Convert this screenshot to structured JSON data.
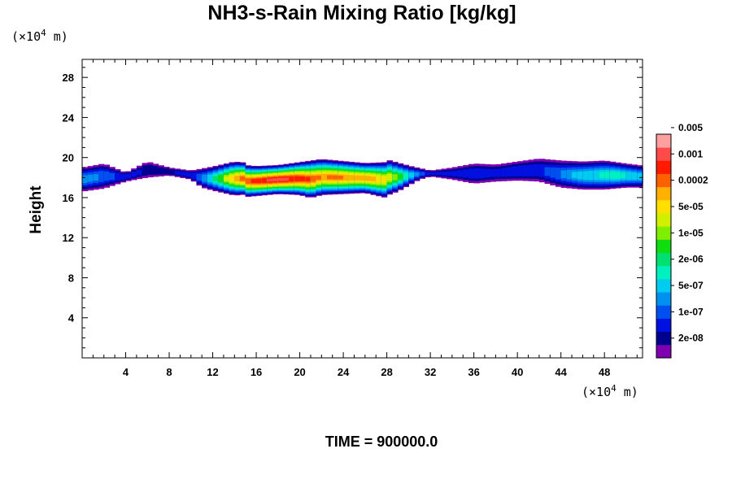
{
  "chart_data": {
    "type": "heatmap",
    "title": "NH3-s-Rain Mixing Ratio [kg/kg]",
    "ylabel": "Height",
    "x_unit": {
      "prefix": "(×10",
      "exp": "4",
      "suffix": " m)"
    },
    "y_unit": {
      "prefix": "(×10",
      "exp": "4",
      "suffix": " m)"
    },
    "xlim": [
      0,
      51.5
    ],
    "ylim": [
      0,
      29.8
    ],
    "x_ticks": [
      4,
      8,
      12,
      16,
      20,
      24,
      28,
      32,
      36,
      40,
      44,
      48
    ],
    "y_ticks": [
      4,
      8,
      12,
      16,
      20,
      24,
      28
    ],
    "time_label": "TIME = 900000.0",
    "colorbar": {
      "colors": [
        "#7F00B0",
        "#00008F",
        "#0010E0",
        "#0050F0",
        "#0090F0",
        "#00CCF0",
        "#00F0C0",
        "#00E070",
        "#10DD10",
        "#80EE00",
        "#D0F000",
        "#FFE000",
        "#FFB000",
        "#FF6000",
        "#FF1A00",
        "#FF4A4A",
        "#FFA0A0"
      ],
      "labels": [
        "2e-08",
        "1e-07",
        "5e-07",
        "2e-06",
        "1e-05",
        "5e-05",
        "0.0002",
        "0.001",
        "0.005"
      ]
    },
    "field": {
      "x_start": 0,
      "x_end": 51.5,
      "x_step": 0.5,
      "top_ctrl": [
        [
          0,
          19.0
        ],
        [
          2,
          19.4
        ],
        [
          4,
          18.5
        ],
        [
          6,
          19.6
        ],
        [
          8,
          19.0
        ],
        [
          10,
          18.7
        ],
        [
          12,
          19.1
        ],
        [
          14,
          19.6
        ],
        [
          16,
          19.4
        ],
        [
          18,
          19.5
        ],
        [
          20,
          19.8
        ],
        [
          22,
          20.1
        ],
        [
          24,
          19.9
        ],
        [
          26,
          19.7
        ],
        [
          28,
          19.8
        ],
        [
          30,
          19.2
        ],
        [
          32,
          18.7
        ],
        [
          34,
          19.0
        ],
        [
          36,
          19.4
        ],
        [
          38,
          19.3
        ],
        [
          40,
          19.6
        ],
        [
          42,
          19.9
        ],
        [
          44,
          19.7
        ],
        [
          46,
          19.6
        ],
        [
          48,
          19.7
        ],
        [
          50,
          19.4
        ],
        [
          51.5,
          19.2
        ]
      ],
      "bot_ctrl": [
        [
          0,
          16.6
        ],
        [
          2,
          16.9
        ],
        [
          4,
          17.6
        ],
        [
          6,
          18.0
        ],
        [
          8,
          18.2
        ],
        [
          10,
          17.8
        ],
        [
          11,
          17.0
        ],
        [
          12,
          16.7
        ],
        [
          14,
          16.2
        ],
        [
          16,
          16.4
        ],
        [
          18,
          16.6
        ],
        [
          20,
          16.5
        ],
        [
          21,
          16.2
        ],
        [
          22,
          16.5
        ],
        [
          24,
          16.6
        ],
        [
          26,
          16.7
        ],
        [
          28,
          16.2
        ],
        [
          29,
          16.6
        ],
        [
          30,
          17.2
        ],
        [
          31,
          17.8
        ],
        [
          32,
          18.1
        ],
        [
          34,
          17.8
        ],
        [
          36,
          17.4
        ],
        [
          38,
          17.6
        ],
        [
          40,
          17.7
        ],
        [
          42,
          17.6
        ],
        [
          44,
          17.0
        ],
        [
          46,
          16.8
        ],
        [
          48,
          16.8
        ],
        [
          50,
          17.0
        ],
        [
          51.5,
          17.0
        ]
      ],
      "int_ctrl": [
        [
          0,
          4.5
        ],
        [
          2,
          3.8
        ],
        [
          4,
          2.4
        ],
        [
          6,
          1.8
        ],
        [
          8,
          1.8
        ],
        [
          10,
          2.6
        ],
        [
          11,
          4.0
        ],
        [
          12,
          6.5
        ],
        [
          13,
          9.5
        ],
        [
          14,
          12.3
        ],
        [
          15,
          13.8
        ],
        [
          16,
          14.5
        ],
        [
          17,
          15.0
        ],
        [
          18,
          15.2
        ],
        [
          19,
          15.0
        ],
        [
          20,
          14.6
        ],
        [
          21,
          14.0
        ],
        [
          22,
          12.8
        ],
        [
          23,
          13.2
        ],
        [
          24,
          13.0
        ],
        [
          25,
          12.5
        ],
        [
          26,
          12.6
        ],
        [
          27,
          12.2
        ],
        [
          28,
          11.2
        ],
        [
          29,
          9.0
        ],
        [
          30,
          6.0
        ],
        [
          31,
          3.5
        ],
        [
          32,
          2.0
        ],
        [
          34,
          2.0
        ],
        [
          36,
          2.8
        ],
        [
          38,
          2.2
        ],
        [
          40,
          3.0
        ],
        [
          42,
          2.8
        ],
        [
          44,
          4.0
        ],
        [
          46,
          5.6
        ],
        [
          48,
          6.2
        ],
        [
          49,
          6.6
        ],
        [
          50,
          6.0
        ],
        [
          51.5,
          5.4
        ]
      ]
    }
  }
}
